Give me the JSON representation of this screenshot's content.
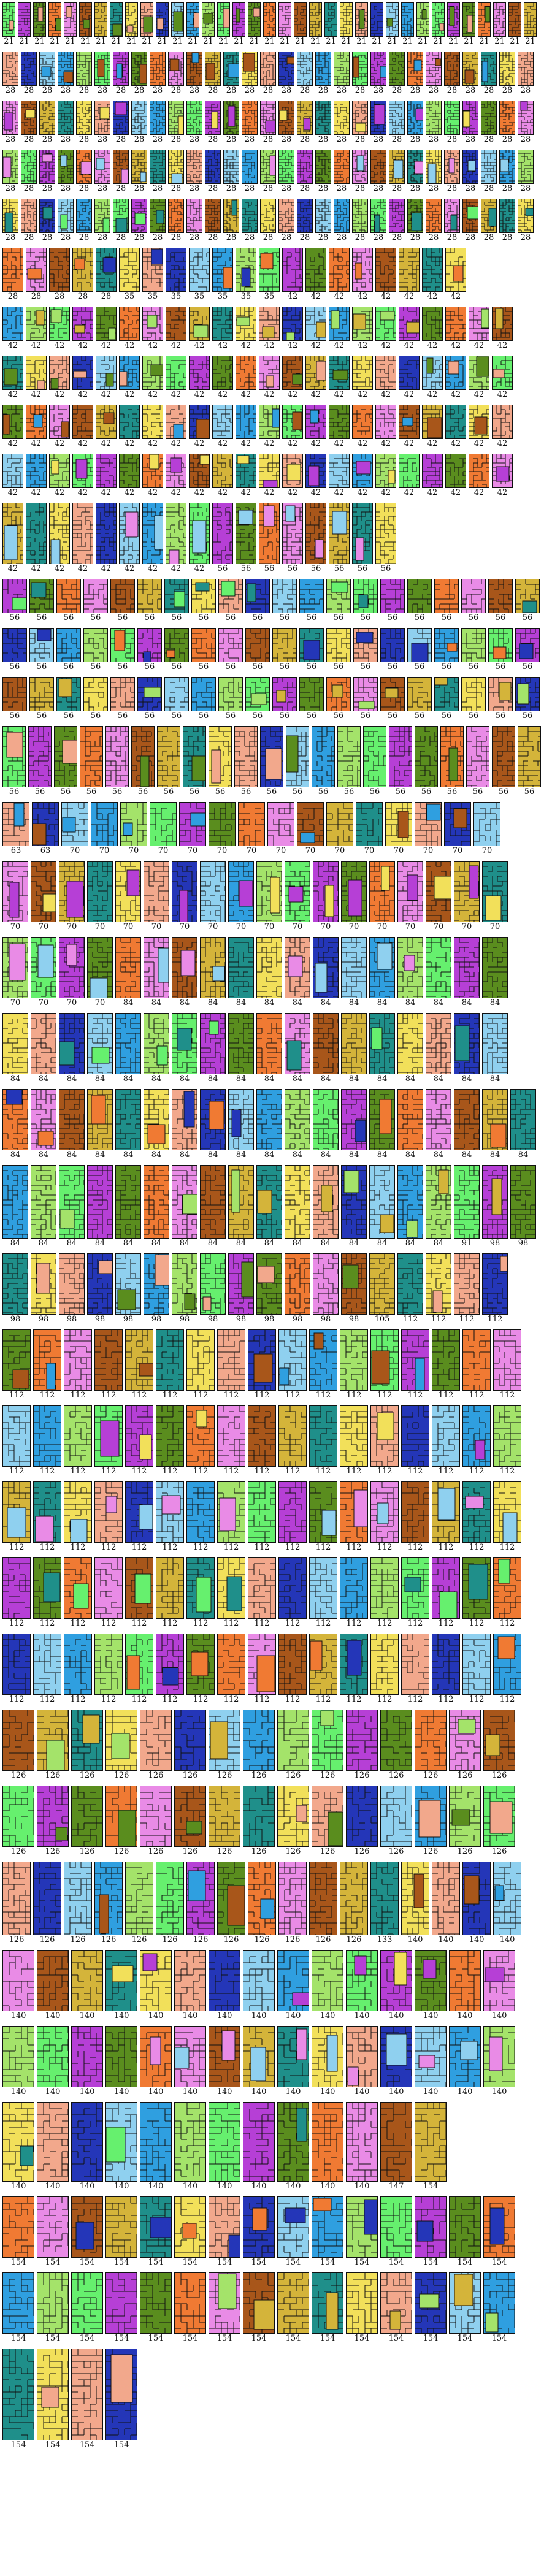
{
  "palette": {
    "green": "#66f06e",
    "orange": "#f07a33",
    "olive": "#d4b43a",
    "salmon": "#f2a88c",
    "blue": "#2f9fe0",
    "purple": "#b63fd6",
    "pink": "#e98be6",
    "teal": "#1f8f8a",
    "navy": "#2436b8",
    "lime": "#a4e36a",
    "darkgreen": "#5a8d1e",
    "brown": "#a8561a",
    "yellow": "#f2e05a",
    "lightblue": "#8fd0ef"
  },
  "rows": [
    {
      "labels": [
        "21",
        "21",
        "21",
        "21",
        "21",
        "21",
        "21",
        "21",
        "21",
        "21",
        "21",
        "21",
        "21",
        "21",
        "21",
        "21",
        "21",
        "21",
        "21",
        "21",
        "21",
        "21",
        "21",
        "21",
        "21",
        "21",
        "21",
        "21",
        "21",
        "21",
        "21",
        "21",
        "21",
        "21",
        "21"
      ],
      "w": 22,
      "h": 56
    },
    {
      "labels": [
        "28",
        "28",
        "28",
        "28",
        "28",
        "28",
        "28",
        "28",
        "28",
        "28",
        "28",
        "28",
        "28",
        "28",
        "28",
        "28",
        "28",
        "28",
        "28",
        "28",
        "28",
        "28",
        "28",
        "28",
        "28",
        "28",
        "28",
        "28",
        "28"
      ],
      "w": 26,
      "h": 56
    },
    {
      "labels": [
        "28",
        "28",
        "28",
        "28",
        "28",
        "28",
        "28",
        "28",
        "28",
        "28",
        "28",
        "28",
        "28",
        "28",
        "28",
        "28",
        "28",
        "28",
        "28",
        "28",
        "28",
        "28",
        "28",
        "28",
        "28",
        "28",
        "28",
        "28",
        "28"
      ],
      "w": 26,
      "h": 56
    },
    {
      "labels": [
        "28",
        "28",
        "28",
        "28",
        "28",
        "28",
        "28",
        "28",
        "28",
        "28",
        "28",
        "28",
        "28",
        "28",
        "28",
        "28",
        "28",
        "28",
        "28",
        "28",
        "28",
        "28",
        "28",
        "28",
        "28",
        "28",
        "28",
        "28",
        "28"
      ],
      "w": 26,
      "h": 56
    },
    {
      "labels": [
        "28",
        "28",
        "28",
        "28",
        "28",
        "28",
        "28",
        "28",
        "28",
        "28",
        "28",
        "28",
        "28",
        "28",
        "28",
        "28",
        "28",
        "28",
        "28",
        "28",
        "28",
        "28",
        "28",
        "28",
        "28",
        "28",
        "28",
        "28",
        "28"
      ],
      "w": 26,
      "h": 56
    },
    {
      "labels": [
        "28",
        "28",
        "28",
        "28",
        "28",
        "35",
        "35",
        "35",
        "35",
        "35",
        "35",
        "35",
        "42",
        "42",
        "42",
        "42",
        "42",
        "42",
        "42",
        "42"
      ],
      "w": 34,
      "h": 72
    },
    {
      "labels": [
        "42",
        "42",
        "42",
        "42",
        "42",
        "42",
        "42",
        "42",
        "42",
        "42",
        "42",
        "42",
        "42",
        "42",
        "42",
        "42",
        "42",
        "42",
        "42",
        "42",
        "42",
        "42"
      ],
      "w": 34,
      "h": 56
    },
    {
      "labels": [
        "42",
        "42",
        "42",
        "42",
        "42",
        "42",
        "42",
        "42",
        "42",
        "42",
        "42",
        "42",
        "42",
        "42",
        "42",
        "42",
        "42",
        "42",
        "42",
        "42",
        "42",
        "42"
      ],
      "w": 34,
      "h": 56
    },
    {
      "labels": [
        "42",
        "42",
        "42",
        "42",
        "42",
        "42",
        "42",
        "42",
        "42",
        "42",
        "42",
        "42",
        "42",
        "42",
        "42",
        "42",
        "42",
        "42",
        "42",
        "42",
        "42",
        "42"
      ],
      "w": 34,
      "h": 56
    },
    {
      "labels": [
        "42",
        "42",
        "42",
        "42",
        "42",
        "42",
        "42",
        "42",
        "42",
        "42",
        "42",
        "42",
        "42",
        "42",
        "42",
        "42",
        "42",
        "42",
        "42",
        "42",
        "42",
        "42"
      ],
      "w": 34,
      "h": 56
    },
    {
      "labels": [
        "42",
        "42",
        "42",
        "42",
        "42",
        "42",
        "42",
        "42",
        "42",
        "56",
        "56",
        "56",
        "56",
        "56",
        "56",
        "56",
        "56"
      ],
      "w": 34,
      "h": 100
    },
    {
      "labels": [
        "56",
        "56",
        "56",
        "56",
        "56",
        "56",
        "56",
        "56",
        "56",
        "56",
        "56",
        "56",
        "56",
        "56",
        "56",
        "56",
        "56",
        "56",
        "56",
        "56"
      ],
      "w": 40,
      "h": 56
    },
    {
      "labels": [
        "56",
        "56",
        "56",
        "56",
        "56",
        "56",
        "56",
        "56",
        "56",
        "56",
        "56",
        "56",
        "56",
        "56",
        "56",
        "56",
        "56",
        "56",
        "56",
        "56"
      ],
      "w": 40,
      "h": 56
    },
    {
      "labels": [
        "56",
        "56",
        "56",
        "56",
        "56",
        "56",
        "56",
        "56",
        "56",
        "56",
        "56",
        "56",
        "56",
        "56",
        "56",
        "56",
        "56",
        "56",
        "56",
        "56"
      ],
      "w": 40,
      "h": 56
    },
    {
      "labels": [
        "56",
        "56",
        "56",
        "56",
        "56",
        "56",
        "56",
        "56",
        "56",
        "56",
        "56",
        "56",
        "56",
        "56",
        "56",
        "56",
        "56",
        "56",
        "56",
        "56",
        "56"
      ],
      "w": 38,
      "h": 100
    },
    {
      "labels": [
        "63",
        "63",
        "70",
        "70",
        "70",
        "70",
        "70",
        "70",
        "70",
        "70",
        "70",
        "70",
        "70",
        "70",
        "70",
        "70",
        "70"
      ],
      "w": 44,
      "h": 72
    },
    {
      "labels": [
        "70",
        "70",
        "70",
        "70",
        "70",
        "70",
        "70",
        "70",
        "70",
        "70",
        "70",
        "70",
        "70",
        "70",
        "70",
        "70",
        "70",
        "70"
      ],
      "w": 42,
      "h": 100
    },
    {
      "labels": [
        "70",
        "70",
        "70",
        "70",
        "84",
        "84",
        "84",
        "84",
        "84",
        "84",
        "84",
        "84",
        "84",
        "84",
        "84",
        "84",
        "84",
        "84"
      ],
      "w": 42,
      "h": 100
    },
    {
      "labels": [
        "84",
        "84",
        "84",
        "84",
        "84",
        "84",
        "84",
        "84",
        "84",
        "84",
        "84",
        "84",
        "84",
        "84",
        "84",
        "84",
        "84",
        "84"
      ],
      "w": 42,
      "h": 100
    },
    {
      "labels": [
        "84",
        "84",
        "84",
        "84",
        "84",
        "84",
        "84",
        "84",
        "84",
        "84",
        "84",
        "84",
        "84",
        "84",
        "84",
        "84",
        "84",
        "84",
        "84"
      ],
      "w": 42,
      "h": 100
    },
    {
      "labels": [
        "84",
        "84",
        "84",
        "84",
        "84",
        "84",
        "84",
        "84",
        "84",
        "84",
        "84",
        "84",
        "84",
        "84",
        "84",
        "84",
        "91",
        "98",
        "98"
      ],
      "w": 42,
      "h": 120
    },
    {
      "labels": [
        "98",
        "98",
        "98",
        "98",
        "98",
        "98",
        "98",
        "98",
        "98",
        "98",
        "98",
        "98",
        "98",
        "105",
        "112",
        "112",
        "112",
        "112"
      ],
      "w": 42,
      "h": 100
    },
    {
      "labels": [
        "112",
        "112",
        "112",
        "112",
        "112",
        "112",
        "112",
        "112",
        "112",
        "112",
        "112",
        "112",
        "112",
        "112",
        "112",
        "112",
        "112"
      ],
      "w": 46,
      "h": 100
    },
    {
      "labels": [
        "112",
        "112",
        "112",
        "112",
        "112",
        "112",
        "112",
        "112",
        "112",
        "112",
        "112",
        "112",
        "112",
        "112",
        "112",
        "112",
        "112"
      ],
      "w": 46,
      "h": 100
    },
    {
      "labels": [
        "112",
        "112",
        "112",
        "112",
        "112",
        "112",
        "112",
        "112",
        "112",
        "112",
        "112",
        "112",
        "112",
        "112",
        "112",
        "112",
        "112"
      ],
      "w": 46,
      "h": 100
    },
    {
      "labels": [
        "112",
        "112",
        "112",
        "112",
        "112",
        "112",
        "112",
        "112",
        "112",
        "112",
        "112",
        "112",
        "112",
        "112",
        "112",
        "112",
        "112"
      ],
      "w": 46,
      "h": 100
    },
    {
      "labels": [
        "112",
        "112",
        "112",
        "112",
        "112",
        "112",
        "112",
        "112",
        "112",
        "112",
        "112",
        "112",
        "112",
        "112",
        "112",
        "112",
        "112"
      ],
      "w": 46,
      "h": 100
    },
    {
      "labels": [
        "126",
        "126",
        "126",
        "126",
        "126",
        "126",
        "126",
        "126",
        "126",
        "126",
        "126",
        "126",
        "126",
        "126",
        "126"
      ],
      "w": 52,
      "h": 100
    },
    {
      "labels": [
        "126",
        "126",
        "126",
        "126",
        "126",
        "126",
        "126",
        "126",
        "126",
        "126",
        "126",
        "126",
        "126",
        "126",
        "126"
      ],
      "w": 52,
      "h": 100
    },
    {
      "labels": [
        "126",
        "126",
        "126",
        "126",
        "126",
        "126",
        "126",
        "126",
        "126",
        "126",
        "126",
        "126",
        "133",
        "140",
        "140",
        "140",
        "140"
      ],
      "w": 46,
      "h": 120
    },
    {
      "labels": [
        "140",
        "140",
        "140",
        "140",
        "140",
        "140",
        "140",
        "140",
        "140",
        "140",
        "140",
        "140",
        "140",
        "140",
        "140"
      ],
      "w": 52,
      "h": 100
    },
    {
      "labels": [
        "140",
        "140",
        "140",
        "140",
        "140",
        "140",
        "140",
        "140",
        "140",
        "140",
        "140",
        "140",
        "140",
        "140",
        "140"
      ],
      "w": 52,
      "h": 100
    },
    {
      "labels": [
        "140",
        "140",
        "140",
        "140",
        "140",
        "140",
        "140",
        "140",
        "140",
        "140",
        "140",
        "147",
        "154"
      ],
      "w": 52,
      "h": 130
    },
    {
      "labels": [
        "154",
        "154",
        "154",
        "154",
        "154",
        "154",
        "154",
        "154",
        "154",
        "154",
        "154",
        "154",
        "154",
        "154",
        "154"
      ],
      "w": 52,
      "h": 100
    },
    {
      "labels": [
        "154",
        "154",
        "154",
        "154",
        "154",
        "154",
        "154",
        "154",
        "154",
        "154",
        "154",
        "154",
        "154",
        "154",
        "154"
      ],
      "w": 52,
      "h": 100
    },
    {
      "labels": [
        "154",
        "154",
        "154",
        "154"
      ],
      "w": 52,
      "h": 150
    }
  ]
}
